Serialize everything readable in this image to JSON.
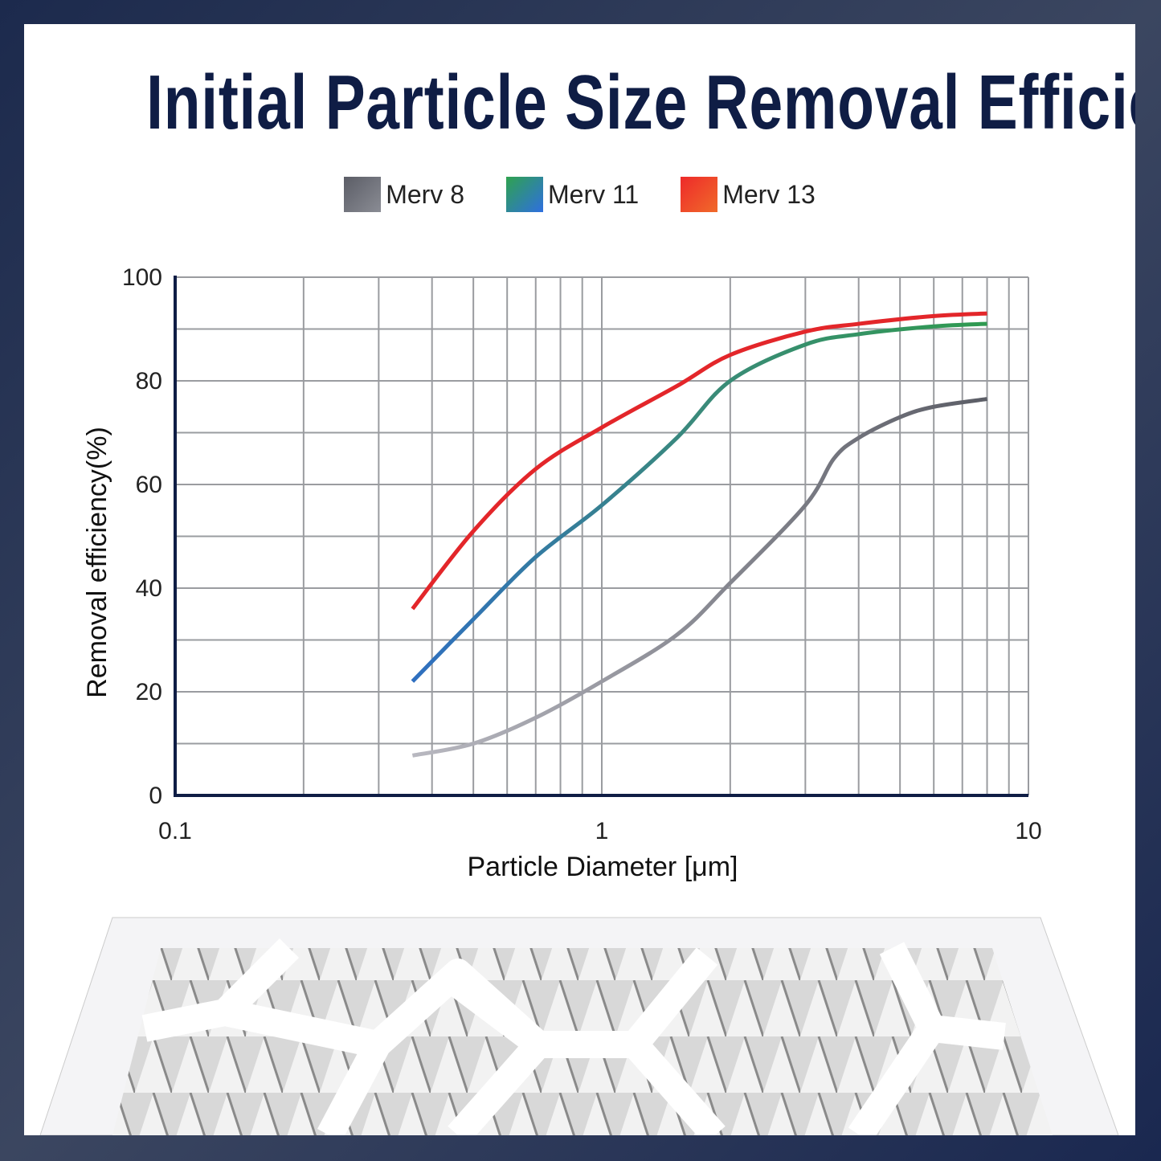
{
  "chart_data": {
    "type": "line",
    "title": "Initial Particle Size Removal Efficiency",
    "xlabel": "Particle Diameter [μm]",
    "ylabel": "Removal efficiency(%)",
    "xscale": "log",
    "xlim": [
      0.1,
      10
    ],
    "ylim": [
      0,
      100
    ],
    "xticks": [
      "0.1",
      "1",
      "10"
    ],
    "yticks": [
      "0",
      "20",
      "40",
      "60",
      "80",
      "100"
    ],
    "grid": true,
    "legend": "top-center",
    "series": [
      {
        "name": "Merv 8",
        "color": "#a9a9b2",
        "swatch": [
          "#5b5d66",
          "#8a8c94"
        ],
        "x": [
          0.36,
          0.5,
          0.7,
          1,
          1.5,
          2,
          3,
          3.5,
          4,
          5,
          6,
          8
        ],
        "y": [
          7.7,
          10,
          15,
          22,
          31,
          41,
          56,
          65,
          69,
          73,
          75,
          76.5
        ]
      },
      {
        "name": "Merv 11",
        "color": "#3a8a7a",
        "swatch": [
          "#2fa24f",
          "#2f6fe0"
        ],
        "x": [
          0.36,
          0.5,
          0.7,
          1,
          1.5,
          2,
          3,
          4,
          6,
          8
        ],
        "y": [
          22,
          34,
          46,
          56,
          69,
          80,
          87,
          89,
          90.5,
          91
        ]
      },
      {
        "name": "Merv 13",
        "color": "#e3262a",
        "swatch": [
          "#ee2a2a",
          "#f06a2a"
        ],
        "x": [
          0.36,
          0.5,
          0.7,
          1,
          1.5,
          2,
          3,
          4,
          6,
          8
        ],
        "y": [
          36,
          51,
          63,
          71,
          79,
          85,
          89.5,
          91,
          92.5,
          93
        ]
      }
    ]
  }
}
